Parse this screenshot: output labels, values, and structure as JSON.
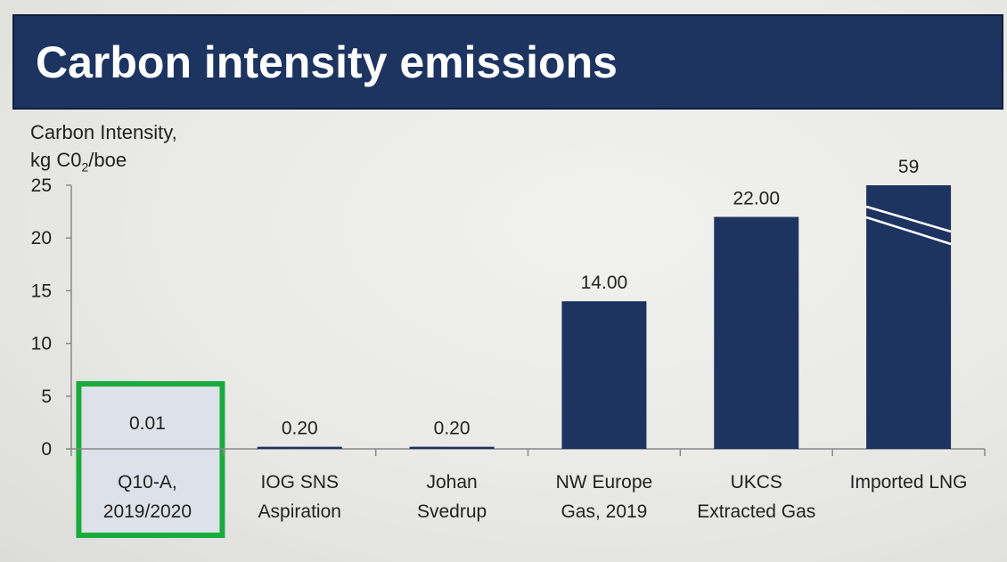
{
  "title": "Carbon intensity emissions",
  "chart_data": {
    "type": "bar",
    "ylabel_line1": "Carbon Intensity,",
    "ylabel_line2_prefix": "kg C0",
    "ylabel_line2_sub": "2",
    "ylabel_line2_suffix": "/boe",
    "ylim": [
      0,
      25
    ],
    "yticks": [
      "0",
      "5",
      "10",
      "15",
      "20",
      "25"
    ],
    "categories": [
      [
        "Q10-A,",
        "2019/2020"
      ],
      [
        "IOG SNS",
        "Aspiration"
      ],
      [
        "Johan",
        "Svedrup"
      ],
      [
        "NW Europe",
        "Gas, 2019"
      ],
      [
        "UKCS",
        "Extracted Gas"
      ],
      [
        "Imported LNG"
      ]
    ],
    "values": [
      0.01,
      0.2,
      0.2,
      14.0,
      22.0,
      59
    ],
    "value_labels": [
      "0.01",
      "0.20",
      "0.20",
      "14.00",
      "22.00",
      "59"
    ],
    "axis_break_on_last_bar": true,
    "highlighted_category": 0,
    "colors": {
      "bar": "#1d3461",
      "highlight_border": "#1bab3c",
      "highlight_fill": "#dde1e9"
    }
  }
}
